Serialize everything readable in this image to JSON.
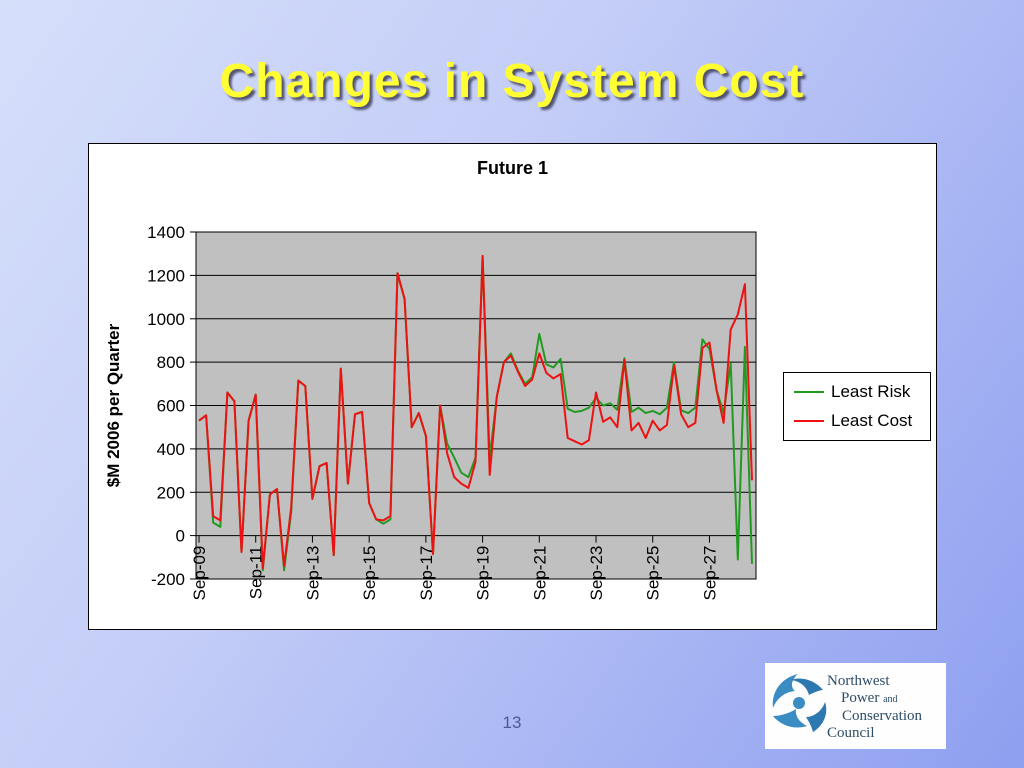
{
  "slide": {
    "title": "Changes in System Cost",
    "page_number": "13"
  },
  "chart": {
    "title": "Future 1"
  },
  "chart_data": {
    "type": "line",
    "title": "Future 1",
    "xlabel": "",
    "ylabel": "$M 2006 per Quarter",
    "ylim": [
      -200,
      1400
    ],
    "y_ticks": [
      1400,
      1200,
      1000,
      800,
      600,
      400,
      200,
      0,
      -200
    ],
    "x_tick_labels": [
      "Sep-09",
      "Sep-11",
      "Sep-13",
      "Sep-15",
      "Sep-17",
      "Sep-19",
      "Sep-21",
      "Sep-23",
      "Sep-25",
      "Sep-27"
    ],
    "x_tick_indices": [
      0,
      8,
      16,
      24,
      32,
      40,
      48,
      56,
      64,
      72
    ],
    "frequency": "quarterly",
    "grid": true,
    "legend_position": "right",
    "plot_bg": "#c0c0c0",
    "series": [
      {
        "name": "Least Risk",
        "color": "#229a22",
        "values": [
          530,
          555,
          60,
          40,
          660,
          620,
          -75,
          530,
          650,
          -160,
          190,
          215,
          -160,
          110,
          715,
          690,
          170,
          320,
          335,
          -90,
          770,
          240,
          560,
          570,
          150,
          75,
          55,
          75,
          1210,
          1090,
          500,
          565,
          460,
          -85,
          600,
          425,
          360,
          290,
          270,
          360,
          1290,
          360,
          640,
          800,
          840,
          760,
          700,
          730,
          930,
          790,
          775,
          815,
          585,
          570,
          575,
          590,
          635,
          600,
          610,
          580,
          818,
          570,
          590,
          565,
          575,
          560,
          590,
          800,
          578,
          565,
          590,
          905,
          860,
          670,
          565,
          795,
          -110,
          870,
          -130
        ]
      },
      {
        "name": "Least Cost",
        "color": "#ee1111",
        "values": [
          530,
          555,
          90,
          70,
          660,
          620,
          -75,
          530,
          650,
          -150,
          190,
          215,
          -140,
          130,
          715,
          690,
          170,
          320,
          335,
          -90,
          770,
          240,
          560,
          570,
          150,
          75,
          70,
          90,
          1210,
          1090,
          500,
          565,
          460,
          -85,
          600,
          380,
          270,
          240,
          220,
          340,
          1290,
          280,
          640,
          800,
          830,
          755,
          690,
          720,
          840,
          750,
          725,
          745,
          450,
          435,
          420,
          440,
          660,
          525,
          545,
          500,
          810,
          485,
          520,
          450,
          530,
          485,
          510,
          785,
          560,
          500,
          520,
          865,
          890,
          670,
          520,
          950,
          1020,
          1160,
          255
        ]
      }
    ]
  },
  "logo": {
    "line1": "Northwest",
    "line2a": "Power",
    "line2b": "and",
    "line3": "Conservation",
    "line4": "Council"
  }
}
